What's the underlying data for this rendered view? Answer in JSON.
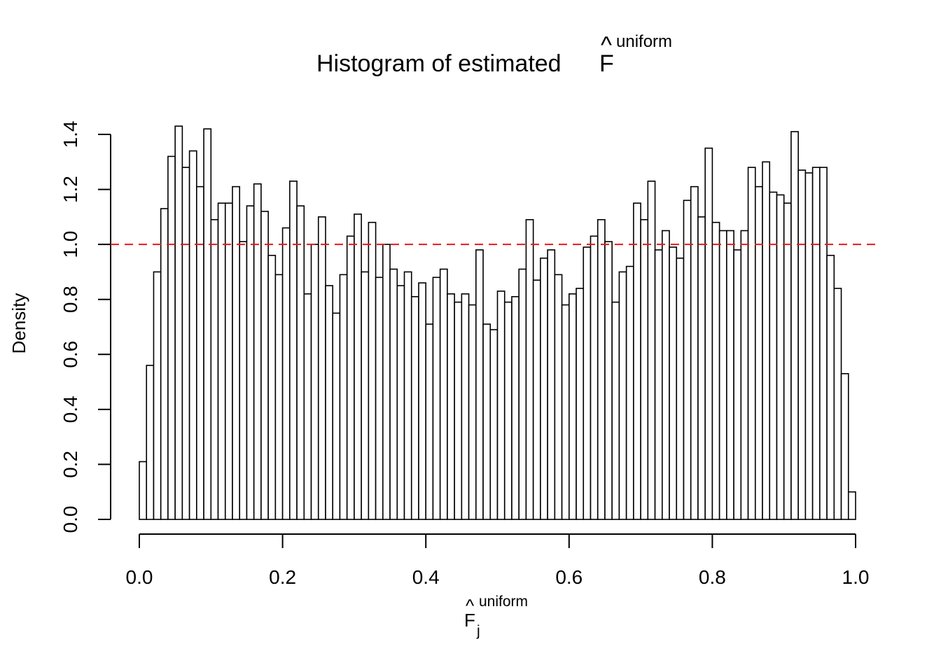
{
  "chart_data": {
    "type": "bar",
    "subtype": "histogram",
    "title": {
      "text": "Histogram of estimated ",
      "symbol": "F",
      "hat": "^",
      "superscript": "uniform"
    },
    "xlabel": {
      "symbol": "F",
      "hat": "^",
      "superscript": "uniform",
      "subscript": "j"
    },
    "ylabel": "Density",
    "xlim": [
      0,
      1
    ],
    "ylim": [
      0,
      1.4
    ],
    "xticks": [
      "0.0",
      "0.2",
      "0.4",
      "0.6",
      "0.8",
      "1.0"
    ],
    "yticks": [
      "0.0",
      "0.2",
      "0.4",
      "0.6",
      "0.8",
      "1.0",
      "1.2",
      "1.4"
    ],
    "bin_width": 0.01,
    "values": [
      0.21,
      0.56,
      0.9,
      1.13,
      1.32,
      1.43,
      1.28,
      1.34,
      1.21,
      1.42,
      1.09,
      1.15,
      1.15,
      1.21,
      1.01,
      1.14,
      1.22,
      1.12,
      0.96,
      0.89,
      1.06,
      1.23,
      1.14,
      0.82,
      1.0,
      1.1,
      0.85,
      0.75,
      0.89,
      1.03,
      1.11,
      0.9,
      1.08,
      0.88,
      1.0,
      0.91,
      0.85,
      0.9,
      0.81,
      0.86,
      0.71,
      0.88,
      0.91,
      0.82,
      0.79,
      0.82,
      0.78,
      0.98,
      0.71,
      0.69,
      0.83,
      0.79,
      0.81,
      0.91,
      1.09,
      0.87,
      0.95,
      0.98,
      0.89,
      0.78,
      0.82,
      0.84,
      0.99,
      1.03,
      1.09,
      1.01,
      0.79,
      0.9,
      0.92,
      1.15,
      1.09,
      1.23,
      0.98,
      1.05,
      0.99,
      0.95,
      1.16,
      1.21,
      1.1,
      1.35,
      1.08,
      1.05,
      1.05,
      0.98,
      1.05,
      1.28,
      1.21,
      1.3,
      1.19,
      1.18,
      1.15,
      1.41,
      1.27,
      1.26,
      1.28,
      1.28,
      0.96,
      0.84,
      0.53,
      0.1
    ],
    "reference_line": {
      "y": 1.0,
      "style": "dashed",
      "color": "#e41a1c"
    },
    "bar_fill": "#ffffff",
    "bar_stroke": "#000000",
    "grid": false,
    "legend": "none"
  }
}
